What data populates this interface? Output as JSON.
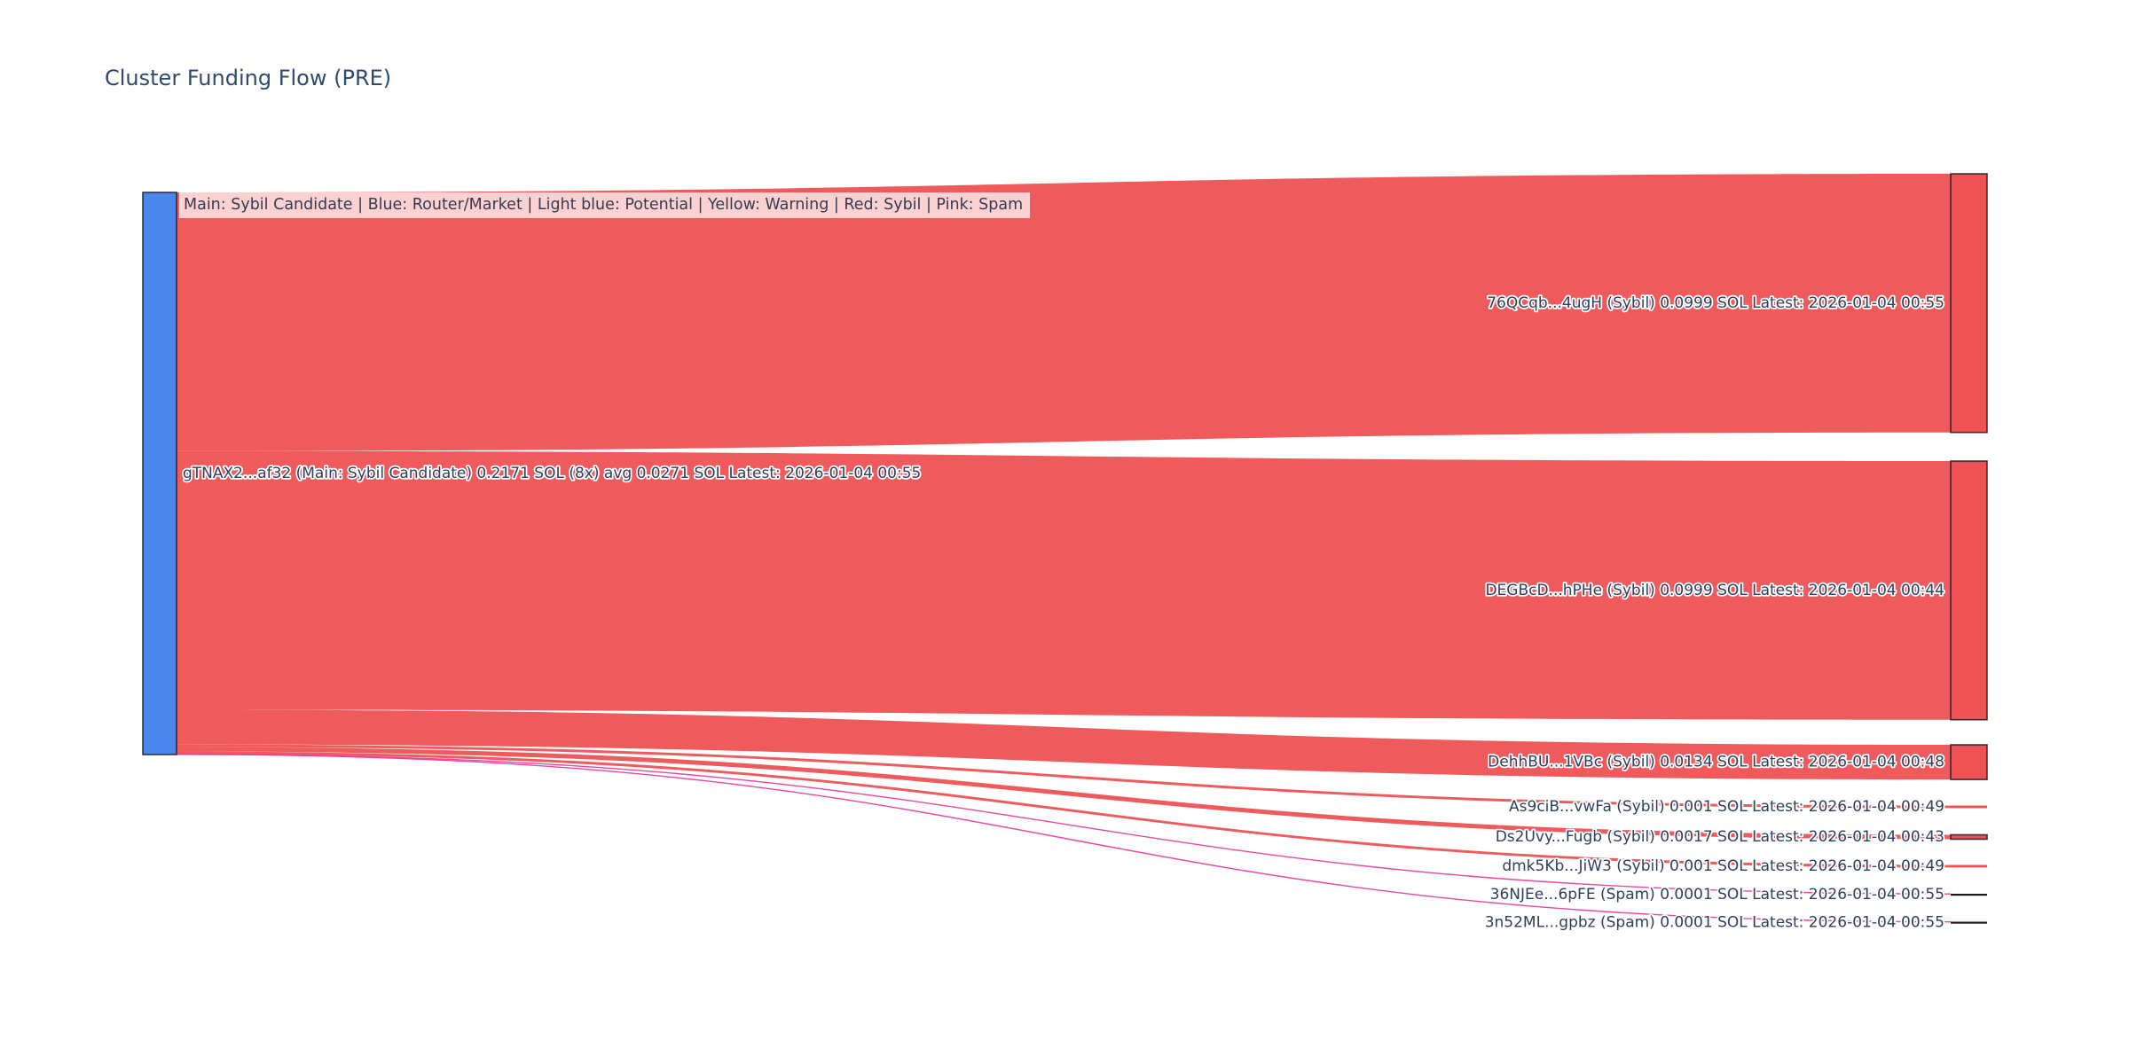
{
  "chart_data": {
    "type": "sankey",
    "title": "Cluster Funding Flow (PRE)",
    "legend_note": "Main: Sybil Candidate  |  Blue: Router/Market | Light blue: Potential | Yellow: Warning | Red: Sybil | Pink: Spam",
    "unit": "SOL",
    "legend_position": "top-left-over-flow",
    "source_node": {
      "address": "gTNAX2...af32",
      "label": "gTNAX2...af32 (Main: Sybil Candidate) 0.2171 SOL (8x) avg 0.0271 SOL Latest: 2026-01-04 00:55",
      "category": "Main: Sybil Candidate",
      "total_sol": 0.2171,
      "transfer_count": 8,
      "avg_sol": 0.0271,
      "latest": "2026-01-04 00:55",
      "color": "#4a86ee"
    },
    "links": [
      {
        "target": "76QCqb...4ugH",
        "label": "76QCqb...4ugH (Sybil) 0.0999 SOL Latest: 2026-01-04 00:55",
        "category": "Sybil",
        "value_sol": 0.0999,
        "latest": "2026-01-04 00:55",
        "flow_color": "#ee5254",
        "node_color": "#ee5254"
      },
      {
        "target": "DEGBcD...hPHe",
        "label": "DEGBcD...hPHe (Sybil) 0.0999 SOL Latest: 2026-01-04 00:44",
        "category": "Sybil",
        "value_sol": 0.0999,
        "latest": "2026-01-04 00:44",
        "flow_color": "#ee5254",
        "node_color": "#ee5254"
      },
      {
        "target": "DehhBU...1VBc",
        "label": "DehhBU...1VBc (Sybil) 0.0134 SOL Latest: 2026-01-04 00:48",
        "category": "Sybil",
        "value_sol": 0.0134,
        "latest": "2026-01-04 00:48",
        "flow_color": "#ee5254",
        "node_color": "#ee5254"
      },
      {
        "target": "As9ciB...vwFa",
        "label": "As9ciB...vwFa (Sybil) 0.001 SOL Latest: 2026-01-04 00:49",
        "category": "Sybil",
        "value_sol": 0.001,
        "latest": "2026-01-04 00:49",
        "flow_color": "#ee5254",
        "node_color": "#ee5254"
      },
      {
        "target": "Ds2Uvy...Fugb",
        "label": "Ds2Uvy...Fugb (Sybil) 0.0017 SOL Latest: 2026-01-04 00:43",
        "category": "Sybil",
        "value_sol": 0.0017,
        "latest": "2026-01-04 00:43",
        "flow_color": "#ee5254",
        "node_color": "#ee5254"
      },
      {
        "target": "dmk5Kb...JiW3",
        "label": "dmk5Kb...JiW3 (Sybil) 0.001 SOL Latest: 2026-01-04 00:49",
        "category": "Sybil",
        "value_sol": 0.001,
        "latest": "2026-01-04 00:49",
        "flow_color": "#ee5254",
        "node_color": "#ee5254"
      },
      {
        "target": "36NJEe...6pFE",
        "label": "36NJEe...6pFE (Spam) 0.0001 SOL Latest: 2026-01-04 00:55",
        "category": "Spam",
        "value_sol": 0.0001,
        "latest": "2026-01-04 00:55",
        "flow_color": "#e83e9c",
        "node_color": "#1a1a1a"
      },
      {
        "target": "3n52ML...gpbz",
        "label": "3n52ML...gpbz (Spam) 0.0001 SOL Latest: 2026-01-04 00:55",
        "category": "Spam",
        "value_sol": 0.0001,
        "latest": "2026-01-04 00:55",
        "flow_color": "#e83e9c",
        "node_color": "#1a1a1a"
      }
    ],
    "colors": {
      "main_node": "#4a86ee",
      "sybil": "#ee5254",
      "spam": "#e83e9c",
      "spam_node": "#1a1a1a",
      "label_text": "#2c3f5e",
      "title_text": "#2e4a6e",
      "background": "#ffffff"
    }
  }
}
